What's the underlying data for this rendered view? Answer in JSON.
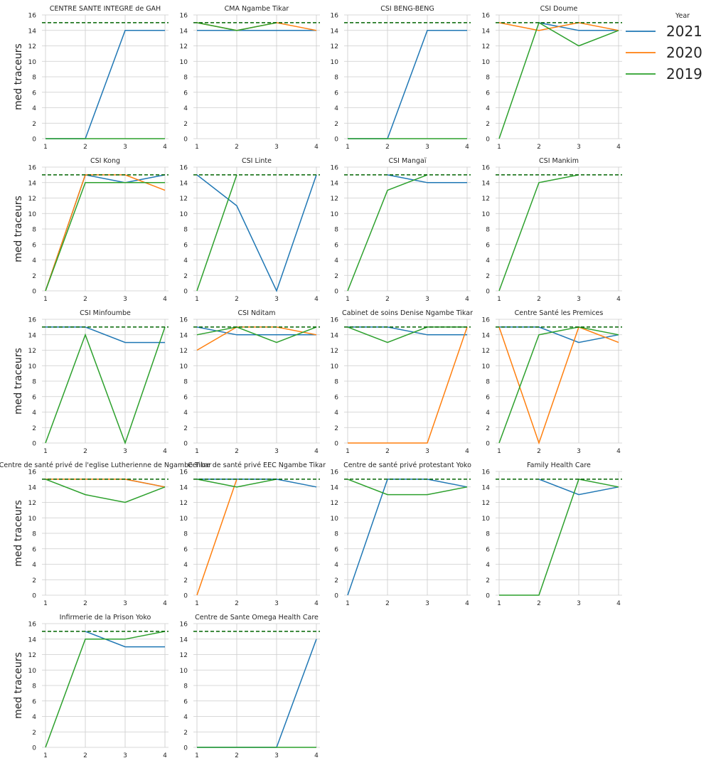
{
  "chart_data": {
    "type": "line",
    "ylabel": "med traceurs",
    "legend": {
      "title": "Year",
      "placement": "right",
      "entries": [
        "2021",
        "2020",
        "2019"
      ]
    },
    "series_colors": {
      "2021": "#1f77b4",
      "2020": "#ff7f0e",
      "2019": "#2ca02c"
    },
    "reference_line": {
      "y": 15,
      "color": "#006400",
      "style": "dashed"
    },
    "x_ticks": [
      1,
      2,
      3,
      4
    ],
    "ylim": [
      0,
      16
    ],
    "y_ticks": [
      0,
      2,
      4,
      6,
      8,
      10,
      12,
      14,
      16
    ],
    "grid": true,
    "panels": [
      {
        "title": "CENTRE SANTE INTEGRE  de GAH",
        "series": [
          {
            "name": "2021",
            "x": [
              1,
              2,
              3,
              4
            ],
            "y": [
              0,
              0,
              14,
              14
            ]
          },
          {
            "name": "2019",
            "x": [
              1,
              2,
              3,
              4
            ],
            "y": [
              0,
              0,
              0,
              0
            ]
          }
        ]
      },
      {
        "title": "CMA Ngambe Tikar",
        "series": [
          {
            "name": "2021",
            "x": [
              1,
              2,
              3,
              4
            ],
            "y": [
              14,
              14,
              14,
              14
            ]
          },
          {
            "name": "2020",
            "x": [
              1,
              2,
              3,
              4
            ],
            "y": [
              15,
              14,
              15,
              14
            ]
          },
          {
            "name": "2019",
            "x": [
              1,
              2,
              3
            ],
            "y": [
              15,
              14,
              15
            ]
          }
        ]
      },
      {
        "title": "CSI BENG-BENG",
        "series": [
          {
            "name": "2021",
            "x": [
              1,
              2,
              3,
              4
            ],
            "y": [
              0,
              0,
              14,
              14
            ]
          },
          {
            "name": "2019",
            "x": [
              1,
              2,
              3,
              4
            ],
            "y": [
              0,
              0,
              0,
              0
            ]
          }
        ]
      },
      {
        "title": "CSI Doume",
        "series": [
          {
            "name": "2021",
            "x": [
              2,
              3,
              4
            ],
            "y": [
              15,
              14,
              14
            ]
          },
          {
            "name": "2020",
            "x": [
              1,
              2,
              3,
              4
            ],
            "y": [
              15,
              14,
              15,
              14
            ]
          },
          {
            "name": "2019",
            "x": [
              1,
              2,
              3,
              4
            ],
            "y": [
              0,
              15,
              12,
              14
            ]
          }
        ]
      },
      {
        "title": "CSI Kong",
        "series": [
          {
            "name": "2021",
            "x": [
              1,
              2,
              3,
              4
            ],
            "y": [
              0,
              15,
              14,
              15
            ]
          },
          {
            "name": "2020",
            "x": [
              1,
              2,
              3,
              4
            ],
            "y": [
              0,
              15,
              15,
              13
            ]
          },
          {
            "name": "2019",
            "x": [
              1,
              2,
              3,
              4
            ],
            "y": [
              0,
              14,
              14,
              14
            ]
          }
        ]
      },
      {
        "title": "CSI Linte",
        "series": [
          {
            "name": "2021",
            "x": [
              1,
              2,
              3,
              4
            ],
            "y": [
              15,
              11,
              0,
              15
            ]
          },
          {
            "name": "2019",
            "x": [
              1,
              2
            ],
            "y": [
              0,
              15
            ]
          }
        ]
      },
      {
        "title": "CSI Mangaï",
        "series": [
          {
            "name": "2021",
            "x": [
              2,
              3,
              4
            ],
            "y": [
              15,
              14,
              14
            ]
          },
          {
            "name": "2019",
            "x": [
              1,
              2,
              3
            ],
            "y": [
              0,
              13,
              15
            ]
          }
        ]
      },
      {
        "title": "CSI Mankim",
        "series": [
          {
            "name": "2019",
            "x": [
              1,
              2,
              3
            ],
            "y": [
              0,
              14,
              15
            ]
          }
        ]
      },
      {
        "title": "CSI Minfoumbe",
        "series": [
          {
            "name": "2021",
            "x": [
              1,
              2,
              3,
              4
            ],
            "y": [
              15,
              15,
              13,
              13
            ]
          },
          {
            "name": "2019",
            "x": [
              1,
              2,
              3,
              4
            ],
            "y": [
              0,
              14,
              0,
              15
            ]
          }
        ]
      },
      {
        "title": "CSI Nditam",
        "series": [
          {
            "name": "2021",
            "x": [
              1,
              2,
              3,
              4
            ],
            "y": [
              15,
              14,
              14,
              14
            ]
          },
          {
            "name": "2020",
            "x": [
              1,
              2,
              3,
              4
            ],
            "y": [
              12,
              15,
              15,
              14
            ]
          },
          {
            "name": "2019",
            "x": [
              1,
              2,
              3,
              4
            ],
            "y": [
              14,
              15,
              13,
              15
            ]
          }
        ]
      },
      {
        "title": "Cabinet de soins Denise Ngambe Tikar",
        "series": [
          {
            "name": "2021",
            "x": [
              1,
              2,
              3,
              4
            ],
            "y": [
              15,
              15,
              14,
              14
            ]
          },
          {
            "name": "2020",
            "x": [
              1,
              2,
              3,
              4
            ],
            "y": [
              0,
              0,
              0,
              15
            ]
          },
          {
            "name": "2019",
            "x": [
              1,
              2,
              3,
              4
            ],
            "y": [
              15,
              13,
              15,
              15
            ]
          }
        ]
      },
      {
        "title": "Centre Santé les Premices",
        "series": [
          {
            "name": "2021",
            "x": [
              1,
              2,
              3,
              4
            ],
            "y": [
              15,
              15,
              13,
              14
            ]
          },
          {
            "name": "2020",
            "x": [
              1,
              2,
              3,
              4
            ],
            "y": [
              15,
              0,
              15,
              13
            ]
          },
          {
            "name": "2019",
            "x": [
              1,
              2,
              3,
              4
            ],
            "y": [
              0,
              14,
              15,
              14
            ]
          }
        ]
      },
      {
        "title": "Centre de santé privé  de l'eglise Lutherienne de Ngambe Tikar",
        "series": [
          {
            "name": "2021",
            "x": [
              3,
              4
            ],
            "y": [
              15,
              14
            ]
          },
          {
            "name": "2020",
            "x": [
              1,
              2,
              3,
              4
            ],
            "y": [
              15,
              15,
              15,
              14
            ]
          },
          {
            "name": "2019",
            "x": [
              1,
              2,
              3,
              4
            ],
            "y": [
              15,
              13,
              12,
              14
            ]
          }
        ]
      },
      {
        "title": "Centre de santé privé EEC Ngambe Tikar",
        "series": [
          {
            "name": "2021",
            "x": [
              1,
              2,
              3,
              4
            ],
            "y": [
              15,
              15,
              15,
              14
            ]
          },
          {
            "name": "2020",
            "x": [
              1,
              2
            ],
            "y": [
              0,
              15
            ]
          },
          {
            "name": "2019",
            "x": [
              1,
              2,
              3
            ],
            "y": [
              15,
              14,
              15
            ]
          }
        ]
      },
      {
        "title": "Centre de santé privé protestant Yoko",
        "series": [
          {
            "name": "2021",
            "x": [
              1,
              2,
              3,
              4
            ],
            "y": [
              0,
              15,
              15,
              14
            ]
          },
          {
            "name": "2019",
            "x": [
              1,
              2,
              3,
              4
            ],
            "y": [
              15,
              13,
              13,
              14
            ]
          }
        ]
      },
      {
        "title": "Family Health Care",
        "series": [
          {
            "name": "2021",
            "x": [
              2,
              3,
              4
            ],
            "y": [
              15,
              13,
              14
            ]
          },
          {
            "name": "2019",
            "x": [
              1,
              2,
              3,
              4
            ],
            "y": [
              0,
              0,
              15,
              14
            ]
          }
        ]
      },
      {
        "title": "Infirmerie de la Prison Yoko",
        "series": [
          {
            "name": "2021",
            "x": [
              2,
              3,
              4
            ],
            "y": [
              15,
              13,
              13
            ]
          },
          {
            "name": "2019",
            "x": [
              1,
              2,
              3,
              4
            ],
            "y": [
              0,
              14,
              14,
              15
            ]
          }
        ]
      },
      {
        "title": "Centre de Sante Omega Health  Care",
        "series": [
          {
            "name": "2021",
            "x": [
              1,
              2,
              3,
              4
            ],
            "y": [
              0,
              0,
              0,
              14
            ]
          },
          {
            "name": "2019",
            "x": [
              1,
              2,
              3,
              4
            ],
            "y": [
              0,
              0,
              0,
              0
            ]
          }
        ]
      }
    ]
  }
}
